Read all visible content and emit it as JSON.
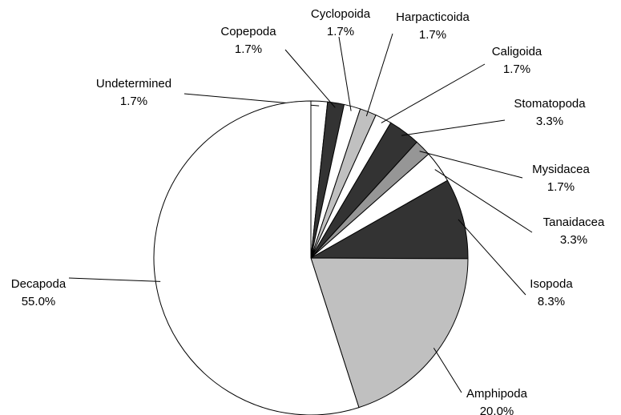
{
  "chart_data": {
    "type": "pie",
    "categories": [
      "Undetermined",
      "Copepoda",
      "Cyclopoida",
      "Harpacticoida",
      "Caligoida",
      "Stomatopoda",
      "Mysidacea",
      "Tanaidacea",
      "Isopoda",
      "Amphipoda",
      "Decapoda"
    ],
    "values": [
      1.7,
      1.7,
      1.7,
      1.7,
      1.7,
      3.3,
      1.7,
      3.3,
      8.3,
      20.0,
      55.0
    ],
    "value_labels": [
      "1.7%",
      "1.7%",
      "1.7%",
      "1.7%",
      "1.7%",
      "3.3%",
      "1.7%",
      "3.3%",
      "8.3%",
      "20.0%",
      "55.0%"
    ],
    "colors": [
      "#ffffff",
      "#333333",
      "#ffffff",
      "#c0c0c0",
      "#ffffff",
      "#333333",
      "#969696",
      "#ffffff",
      "#333333",
      "#c0c0c0",
      "#ffffff"
    ]
  }
}
